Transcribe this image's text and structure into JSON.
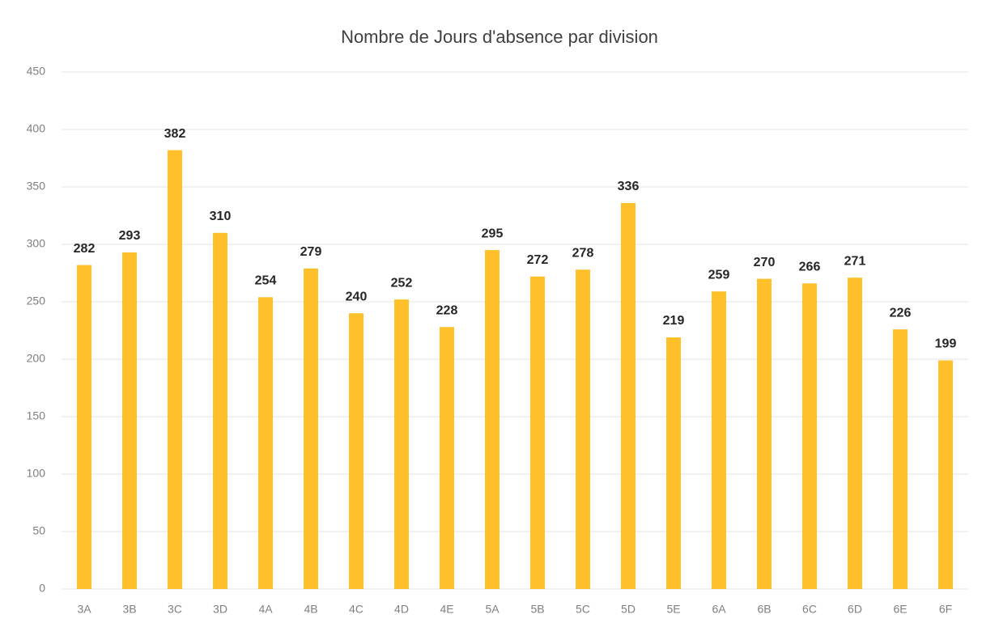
{
  "chart_data": {
    "type": "bar",
    "title": "Nombre de Jours d'absence par division",
    "categories": [
      "3A",
      "3B",
      "3C",
      "3D",
      "4A",
      "4B",
      "4C",
      "4D",
      "4E",
      "5A",
      "5B",
      "5C",
      "5D",
      "5E",
      "6A",
      "6B",
      "6C",
      "6D",
      "6E",
      "6F"
    ],
    "values": [
      282,
      293,
      382,
      310,
      254,
      279,
      240,
      252,
      228,
      295,
      272,
      278,
      336,
      219,
      259,
      270,
      266,
      271,
      226,
      199
    ],
    "color": "#ffc02a",
    "ylim": [
      0,
      450
    ],
    "yticks": [
      0,
      50,
      100,
      150,
      200,
      250,
      300,
      350,
      400,
      450
    ],
    "grid": true
  }
}
